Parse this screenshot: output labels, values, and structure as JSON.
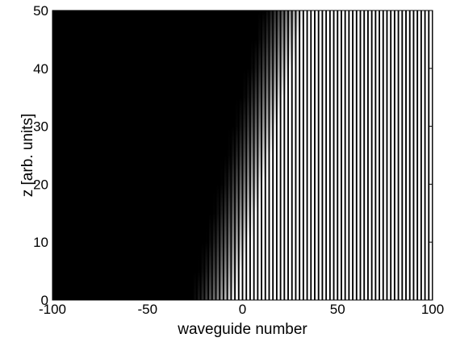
{
  "chart_data": {
    "type": "heatmap",
    "title": "",
    "xlabel": "waveguide number",
    "ylabel": "z [arb. units]",
    "xlim": [
      -100,
      100
    ],
    "ylim": [
      0,
      50
    ],
    "x_ticks": [
      -100,
      -50,
      0,
      50,
      100
    ],
    "y_ticks": [
      0,
      10,
      20,
      30,
      40,
      50
    ],
    "x_tick_labels": [
      "-100",
      "-50",
      "0",
      "50",
      "100"
    ],
    "y_tick_labels": [
      "0",
      "10",
      "20",
      "30",
      "40",
      "50"
    ],
    "waveguide_step": 2,
    "dark_value_color": "#000000",
    "bright_value_color": "#ffffff",
    "front": {
      "description_points": [
        {
          "z": 0,
          "x_dark_end": -28,
          "x_bright_start": -5
        },
        {
          "z": 50,
          "x_dark_end": 10,
          "x_bright_start": 32
        }
      ]
    },
    "grid": false,
    "legend": "none"
  }
}
